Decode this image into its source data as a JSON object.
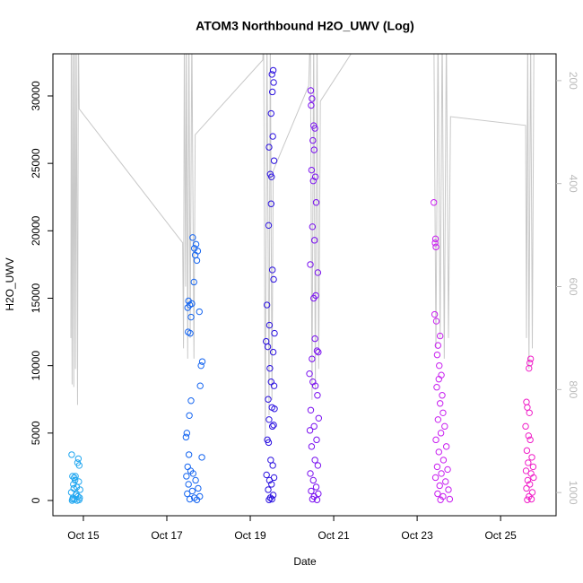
{
  "chart_data": {
    "type": "scatter",
    "title": "ATOM3 Northbound H2O_UWV (Log)",
    "x_label": "Date",
    "y_label": "H2O_UWV",
    "xlim": [
      14.27,
      26.33
    ],
    "xticks": [
      {
        "value": 15,
        "label": "Oct 15"
      },
      {
        "value": 17,
        "label": "Oct 17"
      },
      {
        "value": 19,
        "label": "Oct 19"
      },
      {
        "value": 21,
        "label": "Oct 21"
      },
      {
        "value": 23,
        "label": "Oct 23"
      },
      {
        "value": 25,
        "label": "Oct 25"
      }
    ],
    "ylim": [
      -1130,
      33125
    ],
    "yticks": [
      0,
      5000,
      10000,
      15000,
      20000,
      25000,
      30000
    ],
    "y2lim": [
      1045,
      148
    ],
    "y2ticks": [
      200,
      400,
      600,
      800,
      1000
    ],
    "series": [
      {
        "color": "#22A7F0",
        "x": [
          14.72,
          14.88,
          14.86,
          14.9,
          14.74,
          14.78,
          14.8,
          14.76,
          14.84,
          14.92,
          14.71,
          14.82,
          14.87,
          14.75,
          14.79,
          14.9,
          14.73,
          14.85,
          14.81,
          14.89,
          14.77,
          14.83,
          14.91,
          14.74
        ],
        "values": [
          3400,
          3100,
          2800,
          2600,
          1800,
          1700,
          1500,
          1200,
          1000,
          800,
          600,
          400,
          300,
          200,
          100,
          50,
          0,
          0,
          1800,
          1400,
          900,
          500,
          200,
          100
        ]
      },
      {
        "color": "#1565F0",
        "x": [
          17.62,
          17.7,
          17.66,
          17.74,
          17.68,
          17.72,
          17.65,
          17.52,
          17.55,
          17.5,
          17.6,
          17.78,
          17.58,
          17.51,
          17.56,
          17.85,
          17.82,
          17.8,
          17.58,
          17.54,
          17.48,
          17.46,
          17.53,
          17.84,
          17.5,
          17.57,
          17.63,
          17.47,
          17.69,
          17.52,
          17.75,
          17.61,
          17.49,
          17.79,
          17.66,
          17.55,
          17.72
        ],
        "values": [
          19500,
          19000,
          18700,
          18500,
          18200,
          17800,
          16200,
          14800,
          14500,
          14300,
          14600,
          14000,
          13600,
          12500,
          12400,
          10300,
          10000,
          8500,
          7400,
          6300,
          5000,
          4700,
          3400,
          3200,
          2500,
          2200,
          2000,
          1800,
          1500,
          1200,
          900,
          700,
          500,
          300,
          200,
          100,
          50
        ]
      },
      {
        "color": "#2A10E0",
        "x": [
          19.55,
          19.52,
          19.56,
          19.53,
          19.5,
          19.54,
          19.45,
          19.57,
          19.48,
          19.51,
          19.5,
          19.44,
          19.53,
          19.56,
          19.4,
          19.46,
          19.58,
          19.38,
          19.42,
          19.55,
          19.47,
          19.5,
          19.57,
          19.43,
          19.52,
          19.58,
          19.45,
          19.56,
          19.53,
          19.41,
          19.44,
          19.49,
          19.54,
          19.39,
          19.57,
          19.46,
          19.51,
          19.43,
          19.55,
          19.48,
          19.52,
          19.45
        ],
        "values": [
          31900,
          31600,
          31000,
          30300,
          28700,
          27000,
          26200,
          25200,
          24200,
          24000,
          22000,
          20400,
          17100,
          16400,
          14500,
          13000,
          12400,
          11800,
          11400,
          11000,
          9800,
          8800,
          8500,
          7500,
          6900,
          6800,
          6000,
          5600,
          5500,
          4500,
          4300,
          3000,
          2600,
          1900,
          1700,
          1500,
          1200,
          800,
          400,
          200,
          100,
          50
        ]
      },
      {
        "color": "#7A10F0",
        "x": [
          20.45,
          20.48,
          20.46,
          20.52,
          20.55,
          20.5,
          20.53,
          20.47,
          20.56,
          20.51,
          20.58,
          20.49,
          20.54,
          20.44,
          20.62,
          20.57,
          20.52,
          20.55,
          20.6,
          20.63,
          20.48,
          20.42,
          20.5,
          20.56,
          20.61,
          20.45,
          20.64,
          20.53,
          20.43,
          20.59,
          20.47,
          20.55,
          20.62,
          20.44,
          20.51,
          20.58,
          20.46,
          20.63,
          20.53,
          20.49,
          20.6
        ],
        "values": [
          30400,
          29800,
          29300,
          27800,
          27600,
          26700,
          26000,
          24500,
          24000,
          23700,
          22100,
          20300,
          19300,
          17500,
          16900,
          15200,
          15000,
          12000,
          11100,
          11000,
          10500,
          9400,
          8800,
          8500,
          7800,
          6700,
          6100,
          5500,
          5200,
          4500,
          4000,
          3000,
          2600,
          2000,
          1500,
          1000,
          700,
          500,
          300,
          100,
          50
        ]
      },
      {
        "color": "#C81EF0",
        "x": [
          23.4,
          23.44,
          23.43,
          23.45,
          23.42,
          23.46,
          23.55,
          23.5,
          23.48,
          23.53,
          23.58,
          23.52,
          23.47,
          23.6,
          23.55,
          23.62,
          23.5,
          23.66,
          23.57,
          23.45,
          23.7,
          23.52,
          23.63,
          23.48,
          23.73,
          23.58,
          23.44,
          23.68,
          23.54,
          23.75,
          23.49,
          23.62,
          23.78,
          23.56
        ],
        "values": [
          22100,
          19400,
          19100,
          18800,
          13800,
          13300,
          12200,
          11500,
          10800,
          10000,
          9300,
          9000,
          8400,
          7800,
          7200,
          6500,
          6000,
          5500,
          5000,
          4500,
          4000,
          3600,
          3000,
          2500,
          2300,
          2000,
          1700,
          1400,
          1100,
          800,
          500,
          300,
          100,
          50
        ]
      },
      {
        "color": "#F01EC8",
        "x": [
          25.72,
          25.7,
          25.68,
          25.62,
          25.64,
          25.69,
          25.6,
          25.67,
          25.71,
          25.63,
          25.75,
          25.66,
          25.78,
          25.61,
          25.73,
          25.79,
          25.65,
          25.7,
          25.62,
          25.76,
          25.68,
          25.74,
          25.64
        ],
        "values": [
          10500,
          10200,
          9800,
          7300,
          6900,
          6500,
          5500,
          4800,
          4500,
          3700,
          3200,
          2800,
          2500,
          2200,
          2000,
          1700,
          1500,
          1200,
          900,
          600,
          300,
          100,
          50
        ]
      },
      {
        "type": "line",
        "axis": "y2",
        "color": "#c8c8c8",
        "x": [
          14.7,
          14.71,
          14.73,
          14.75,
          14.77,
          14.79,
          14.81,
          14.83,
          14.86,
          14.88,
          14.9,
          17.38,
          17.4,
          17.42,
          17.45,
          17.47,
          17.5,
          17.53,
          17.56,
          17.6,
          17.65,
          17.68,
          19.3,
          19.32,
          19.36,
          19.4,
          19.45,
          19.48,
          19.52,
          19.55,
          20.4,
          20.44,
          20.48,
          20.52,
          20.56,
          20.6,
          20.64,
          20.68,
          21.8,
          23.4,
          23.45,
          23.5,
          23.55,
          23.6,
          23.65,
          23.7,
          23.75,
          23.8,
          25.6,
          25.62,
          25.65,
          25.68,
          25.72,
          25.76,
          25.8
        ],
        "values": [
          700,
          100,
          790,
          100,
          795,
          100,
          760,
          100,
          830,
          100,
          255,
          515,
          720,
          100,
          600,
          100,
          740,
          100,
          700,
          100,
          740,
          305,
          160,
          100,
          900,
          100,
          850,
          100,
          820,
          375,
          210,
          100,
          820,
          100,
          800,
          100,
          760,
          240,
          100,
          100,
          720,
          100,
          700,
          100,
          740,
          100,
          700,
          270,
          287,
          700,
          100,
          760,
          100,
          720,
          100
        ]
      }
    ]
  }
}
